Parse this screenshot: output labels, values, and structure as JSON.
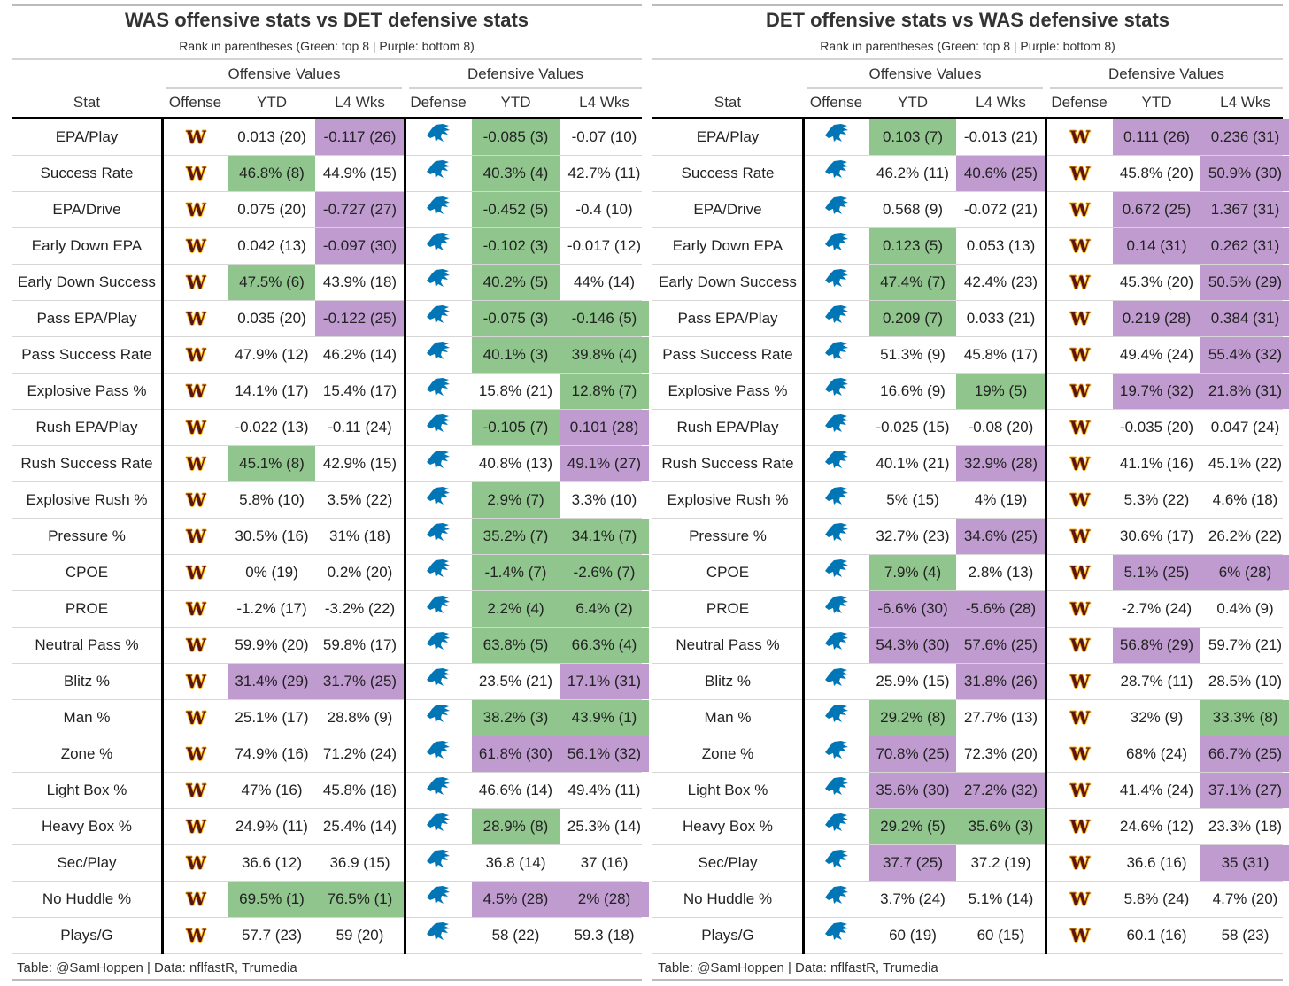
{
  "colors": {
    "green": "#90c68e",
    "purple": "#bf9bd0",
    "was_burgundy": "#5a1414",
    "was_gold": "#ffb612",
    "det_blue": "#0076b6"
  },
  "headers": {
    "stat": "Stat",
    "offensive_values": "Offensive Values",
    "defensive_values": "Defensive Values",
    "offense": "Offense",
    "defense": "Defense",
    "ytd": "YTD",
    "l4": "L4 Wks"
  },
  "tables": [
    {
      "title": "WAS offensive stats vs DET defensive stats",
      "subtitle": "Rank in parentheses (Green: top 8 | Purple: bottom 8)",
      "offense_team": "WAS",
      "defense_team": "DET",
      "footer": "Table: @SamHoppen | Data: nflfastR, Trumedia",
      "rows": [
        {
          "stat": "EPA/Play",
          "vals": [
            "0.013 (20)",
            "-0.117 (26)",
            "-0.085 (3)",
            "-0.07 (10)"
          ],
          "hl": [
            "n",
            "p",
            "g",
            "n"
          ]
        },
        {
          "stat": "Success Rate",
          "vals": [
            "46.8% (8)",
            "44.9% (15)",
            "40.3% (4)",
            "42.7% (11)"
          ],
          "hl": [
            "g",
            "n",
            "g",
            "n"
          ]
        },
        {
          "stat": "EPA/Drive",
          "vals": [
            "0.075 (20)",
            "-0.727 (27)",
            "-0.452 (5)",
            "-0.4 (10)"
          ],
          "hl": [
            "n",
            "p",
            "g",
            "n"
          ]
        },
        {
          "stat": "Early Down EPA",
          "vals": [
            "0.042 (13)",
            "-0.097 (30)",
            "-0.102 (3)",
            "-0.017 (12)"
          ],
          "hl": [
            "n",
            "p",
            "g",
            "n"
          ]
        },
        {
          "stat": "Early Down Success",
          "vals": [
            "47.5% (6)",
            "43.9% (18)",
            "40.2% (5)",
            "44% (14)"
          ],
          "hl": [
            "g",
            "n",
            "g",
            "n"
          ]
        },
        {
          "stat": "Pass EPA/Play",
          "vals": [
            "0.035 (20)",
            "-0.122 (25)",
            "-0.075 (3)",
            "-0.146 (5)"
          ],
          "hl": [
            "n",
            "p",
            "g",
            "g"
          ]
        },
        {
          "stat": "Pass Success Rate",
          "vals": [
            "47.9% (12)",
            "46.2% (14)",
            "40.1% (3)",
            "39.8% (4)"
          ],
          "hl": [
            "n",
            "n",
            "g",
            "g"
          ]
        },
        {
          "stat": "Explosive Pass %",
          "vals": [
            "14.1% (17)",
            "15.4% (17)",
            "15.8% (21)",
            "12.8% (7)"
          ],
          "hl": [
            "n",
            "n",
            "n",
            "g"
          ]
        },
        {
          "stat": "Rush EPA/Play",
          "vals": [
            "-0.022 (13)",
            "-0.11 (24)",
            "-0.105 (7)",
            "0.101 (28)"
          ],
          "hl": [
            "n",
            "n",
            "g",
            "p"
          ]
        },
        {
          "stat": "Rush Success Rate",
          "vals": [
            "45.1% (8)",
            "42.9% (15)",
            "40.8% (13)",
            "49.1% (27)"
          ],
          "hl": [
            "g",
            "n",
            "n",
            "p"
          ]
        },
        {
          "stat": "Explosive Rush %",
          "vals": [
            "5.8% (10)",
            "3.5% (22)",
            "2.9% (7)",
            "3.3% (10)"
          ],
          "hl": [
            "n",
            "n",
            "g",
            "n"
          ]
        },
        {
          "stat": "Pressure %",
          "vals": [
            "30.5% (16)",
            "31% (18)",
            "35.2% (7)",
            "34.1% (7)"
          ],
          "hl": [
            "n",
            "n",
            "g",
            "g"
          ]
        },
        {
          "stat": "CPOE",
          "vals": [
            "0% (19)",
            "0.2% (20)",
            "-1.4% (7)",
            "-2.6% (7)"
          ],
          "hl": [
            "n",
            "n",
            "g",
            "g"
          ]
        },
        {
          "stat": "PROE",
          "vals": [
            "-1.2% (17)",
            "-3.2% (22)",
            "2.2% (4)",
            "6.4% (2)"
          ],
          "hl": [
            "n",
            "n",
            "g",
            "g"
          ]
        },
        {
          "stat": "Neutral Pass %",
          "vals": [
            "59.9% (20)",
            "59.8% (17)",
            "63.8% (5)",
            "66.3% (4)"
          ],
          "hl": [
            "n",
            "n",
            "g",
            "g"
          ]
        },
        {
          "stat": "Blitz %",
          "vals": [
            "31.4% (29)",
            "31.7% (25)",
            "23.5% (21)",
            "17.1% (31)"
          ],
          "hl": [
            "p",
            "p",
            "n",
            "p"
          ]
        },
        {
          "stat": "Man %",
          "vals": [
            "25.1% (17)",
            "28.8% (9)",
            "38.2% (3)",
            "43.9% (1)"
          ],
          "hl": [
            "n",
            "n",
            "g",
            "g"
          ]
        },
        {
          "stat": "Zone %",
          "vals": [
            "74.9% (16)",
            "71.2% (24)",
            "61.8% (30)",
            "56.1% (32)"
          ],
          "hl": [
            "n",
            "n",
            "p",
            "p"
          ]
        },
        {
          "stat": "Light Box %",
          "vals": [
            "47% (16)",
            "45.8% (18)",
            "46.6% (14)",
            "49.4% (11)"
          ],
          "hl": [
            "n",
            "n",
            "n",
            "n"
          ]
        },
        {
          "stat": "Heavy Box %",
          "vals": [
            "24.9% (11)",
            "25.4% (14)",
            "28.9% (8)",
            "25.3% (14)"
          ],
          "hl": [
            "n",
            "n",
            "g",
            "n"
          ]
        },
        {
          "stat": "Sec/Play",
          "vals": [
            "36.6 (12)",
            "36.9 (15)",
            "36.8 (14)",
            "37 (16)"
          ],
          "hl": [
            "n",
            "n",
            "n",
            "n"
          ]
        },
        {
          "stat": "No Huddle %",
          "vals": [
            "69.5% (1)",
            "76.5% (1)",
            "4.5% (28)",
            "2% (28)"
          ],
          "hl": [
            "g",
            "g",
            "p",
            "p"
          ]
        },
        {
          "stat": "Plays/G",
          "vals": [
            "57.7 (23)",
            "59 (20)",
            "58 (22)",
            "59.3 (18)"
          ],
          "hl": [
            "n",
            "n",
            "n",
            "n"
          ]
        }
      ]
    },
    {
      "title": "DET offensive stats vs WAS defensive stats",
      "subtitle": "Rank in parentheses (Green: top 8 | Purple: bottom 8)",
      "offense_team": "DET",
      "defense_team": "WAS",
      "footer": "Table: @SamHoppen | Data: nflfastR, Trumedia",
      "rows": [
        {
          "stat": "EPA/Play",
          "vals": [
            "0.103 (7)",
            "-0.013 (21)",
            "0.111 (26)",
            "0.236 (31)"
          ],
          "hl": [
            "g",
            "n",
            "p",
            "p"
          ]
        },
        {
          "stat": "Success Rate",
          "vals": [
            "46.2% (11)",
            "40.6% (25)",
            "45.8% (20)",
            "50.9% (30)"
          ],
          "hl": [
            "n",
            "p",
            "n",
            "p"
          ]
        },
        {
          "stat": "EPA/Drive",
          "vals": [
            "0.568 (9)",
            "-0.072 (21)",
            "0.672 (25)",
            "1.367 (31)"
          ],
          "hl": [
            "n",
            "n",
            "p",
            "p"
          ]
        },
        {
          "stat": "Early Down EPA",
          "vals": [
            "0.123 (5)",
            "0.053 (13)",
            "0.14 (31)",
            "0.262 (31)"
          ],
          "hl": [
            "g",
            "n",
            "p",
            "p"
          ]
        },
        {
          "stat": "Early Down Success",
          "vals": [
            "47.4% (7)",
            "42.4% (23)",
            "45.3% (20)",
            "50.5% (29)"
          ],
          "hl": [
            "g",
            "n",
            "n",
            "p"
          ]
        },
        {
          "stat": "Pass EPA/Play",
          "vals": [
            "0.209 (7)",
            "0.033 (21)",
            "0.219 (28)",
            "0.384 (31)"
          ],
          "hl": [
            "g",
            "n",
            "p",
            "p"
          ]
        },
        {
          "stat": "Pass Success Rate",
          "vals": [
            "51.3% (9)",
            "45.8% (17)",
            "49.4% (24)",
            "55.4% (32)"
          ],
          "hl": [
            "n",
            "n",
            "n",
            "p"
          ]
        },
        {
          "stat": "Explosive Pass %",
          "vals": [
            "16.6% (9)",
            "19% (5)",
            "19.7% (32)",
            "21.8% (31)"
          ],
          "hl": [
            "n",
            "g",
            "p",
            "p"
          ]
        },
        {
          "stat": "Rush EPA/Play",
          "vals": [
            "-0.025 (15)",
            "-0.08 (20)",
            "-0.035 (20)",
            "0.047 (24)"
          ],
          "hl": [
            "n",
            "n",
            "n",
            "n"
          ]
        },
        {
          "stat": "Rush Success Rate",
          "vals": [
            "40.1% (21)",
            "32.9% (28)",
            "41.1% (16)",
            "45.1% (22)"
          ],
          "hl": [
            "n",
            "p",
            "n",
            "n"
          ]
        },
        {
          "stat": "Explosive Rush %",
          "vals": [
            "5% (15)",
            "4% (19)",
            "5.3% (22)",
            "4.6% (18)"
          ],
          "hl": [
            "n",
            "n",
            "n",
            "n"
          ]
        },
        {
          "stat": "Pressure %",
          "vals": [
            "32.7% (23)",
            "34.6% (25)",
            "30.6% (17)",
            "26.2% (22)"
          ],
          "hl": [
            "n",
            "p",
            "n",
            "n"
          ]
        },
        {
          "stat": "CPOE",
          "vals": [
            "7.9% (4)",
            "2.8% (13)",
            "5.1% (25)",
            "6% (28)"
          ],
          "hl": [
            "g",
            "n",
            "p",
            "p"
          ]
        },
        {
          "stat": "PROE",
          "vals": [
            "-6.6% (30)",
            "-5.6% (28)",
            "-2.7% (24)",
            "0.4% (9)"
          ],
          "hl": [
            "p",
            "p",
            "n",
            "n"
          ]
        },
        {
          "stat": "Neutral Pass %",
          "vals": [
            "54.3% (30)",
            "57.6% (25)",
            "56.8% (29)",
            "59.7% (21)"
          ],
          "hl": [
            "p",
            "p",
            "p",
            "n"
          ]
        },
        {
          "stat": "Blitz %",
          "vals": [
            "25.9% (15)",
            "31.8% (26)",
            "28.7% (11)",
            "28.5% (10)"
          ],
          "hl": [
            "n",
            "p",
            "n",
            "n"
          ]
        },
        {
          "stat": "Man %",
          "vals": [
            "29.2% (8)",
            "27.7% (13)",
            "32% (9)",
            "33.3% (8)"
          ],
          "hl": [
            "g",
            "n",
            "n",
            "g"
          ]
        },
        {
          "stat": "Zone %",
          "vals": [
            "70.8% (25)",
            "72.3% (20)",
            "68% (24)",
            "66.7% (25)"
          ],
          "hl": [
            "p",
            "n",
            "n",
            "p"
          ]
        },
        {
          "stat": "Light Box %",
          "vals": [
            "35.6% (30)",
            "27.2% (32)",
            "41.4% (24)",
            "37.1% (27)"
          ],
          "hl": [
            "p",
            "p",
            "n",
            "p"
          ]
        },
        {
          "stat": "Heavy Box %",
          "vals": [
            "29.2% (5)",
            "35.6% (3)",
            "24.6% (12)",
            "23.3% (18)"
          ],
          "hl": [
            "g",
            "g",
            "n",
            "n"
          ]
        },
        {
          "stat": "Sec/Play",
          "vals": [
            "37.7 (25)",
            "37.2 (19)",
            "36.6 (16)",
            "35 (31)"
          ],
          "hl": [
            "p",
            "n",
            "n",
            "p"
          ]
        },
        {
          "stat": "No Huddle %",
          "vals": [
            "3.7% (24)",
            "5.1% (14)",
            "5.8% (24)",
            "4.7% (20)"
          ],
          "hl": [
            "n",
            "n",
            "n",
            "n"
          ]
        },
        {
          "stat": "Plays/G",
          "vals": [
            "60 (19)",
            "60 (15)",
            "60.1 (16)",
            "58 (23)"
          ],
          "hl": [
            "n",
            "n",
            "n",
            "n"
          ]
        }
      ]
    }
  ],
  "chart_data": [
    {
      "type": "table",
      "title": "WAS offensive stats vs DET defensive stats",
      "columns": [
        "Stat",
        "Offense",
        "YTD",
        "L4 Wks",
        "Defense",
        "YTD",
        "L4 Wks"
      ],
      "source": "tables.0.rows"
    },
    {
      "type": "table",
      "title": "DET offensive stats vs WAS defensive stats",
      "columns": [
        "Stat",
        "Offense",
        "YTD",
        "L4 Wks",
        "Defense",
        "YTD",
        "L4 Wks"
      ],
      "source": "tables.1.rows"
    }
  ]
}
